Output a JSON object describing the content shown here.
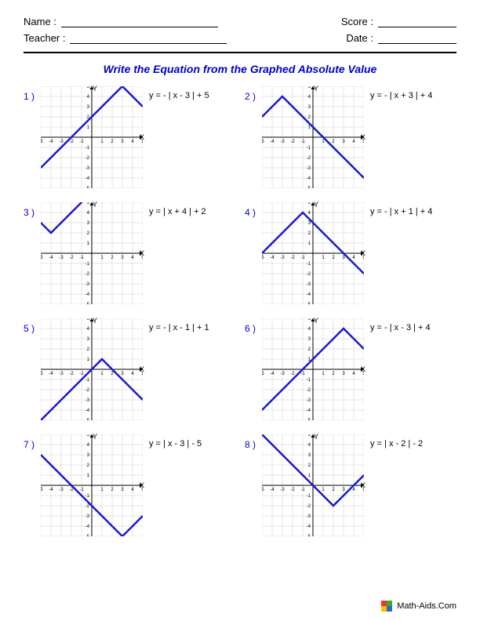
{
  "header": {
    "name_label": "Name :",
    "teacher_label": "Teacher :",
    "score_label": "Score :",
    "date_label": "Date :"
  },
  "title": "Write the Equation from the Graphed Absolute Value",
  "chart_style": {
    "xlim": [
      -5,
      5
    ],
    "ylim": [
      -5,
      5
    ],
    "tick_step": 1,
    "grid_color": "#cccccc",
    "axis_color": "#000000",
    "line_color": "#1a1acc",
    "line_width": 2.5,
    "background": "#ffffff",
    "tick_font_size": 6,
    "arrow_size": 4
  },
  "problems": [
    {
      "num": "1 )",
      "equation": "y = - | x - 3 |  + 5",
      "vertex": [
        3,
        5
      ],
      "slope": -1,
      "sign": -1
    },
    {
      "num": "2 )",
      "equation": "y = - | x + 3 |  + 4",
      "vertex": [
        -3,
        4
      ],
      "slope": -1,
      "sign": -1
    },
    {
      "num": "3 )",
      "equation": "y = | x + 4 |  + 2",
      "vertex": [
        -4,
        2
      ],
      "slope": 1,
      "sign": 1
    },
    {
      "num": "4 )",
      "equation": "y = - | x + 1 |  + 4",
      "vertex": [
        -1,
        4
      ],
      "slope": -1,
      "sign": -1
    },
    {
      "num": "5 )",
      "equation": "y = - | x - 1 |  + 1",
      "vertex": [
        1,
        1
      ],
      "slope": -1,
      "sign": -1
    },
    {
      "num": "6 )",
      "equation": "y = - | x - 3 |  + 4",
      "vertex": [
        3,
        4
      ],
      "slope": -1,
      "sign": -1
    },
    {
      "num": "7 )",
      "equation": "y = | x - 3 |  - 5",
      "vertex": [
        3,
        -5
      ],
      "slope": 1,
      "sign": 1
    },
    {
      "num": "8 )",
      "equation": "y = | x - 2 |  - 2",
      "vertex": [
        2,
        -2
      ],
      "slope": 1,
      "sign": 1
    }
  ],
  "axis_labels": {
    "y": "Y",
    "x": "X"
  },
  "footer": "Math-Aids.Com"
}
